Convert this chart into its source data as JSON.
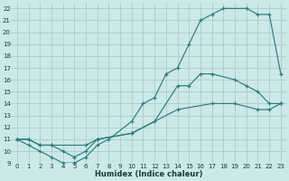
{
  "xlabel": "Humidex (Indice chaleur)",
  "bg_color": "#cce8e8",
  "line_color": "#2d7d7d",
  "grid_color": "#b0d0d0",
  "xlim": [
    -0.5,
    23.5
  ],
  "ylim": [
    9,
    22.5
  ],
  "xticks": [
    0,
    1,
    2,
    3,
    4,
    5,
    6,
    7,
    8,
    9,
    10,
    11,
    12,
    13,
    14,
    15,
    16,
    17,
    18,
    19,
    20,
    21,
    22,
    23
  ],
  "yticks": [
    9,
    10,
    11,
    12,
    13,
    14,
    15,
    16,
    17,
    18,
    19,
    20,
    21,
    22
  ],
  "lines": [
    {
      "x": [
        0,
        1,
        2,
        3,
        4,
        5,
        6,
        7,
        8,
        10,
        11,
        12,
        13,
        14,
        15,
        16,
        17,
        18,
        20,
        21,
        22,
        23
      ],
      "y": [
        11,
        10.5,
        10,
        9.5,
        9,
        9,
        9.5,
        10.5,
        11,
        12.5,
        14,
        14.5,
        16.5,
        17,
        19,
        21,
        21.5,
        22,
        22,
        21.5,
        21.5,
        16.5
      ]
    },
    {
      "x": [
        0,
        1,
        2,
        3,
        4,
        5,
        6,
        7,
        10,
        12,
        14,
        15,
        16,
        17,
        19,
        20,
        21,
        22,
        23
      ],
      "y": [
        11,
        11,
        10.5,
        10.5,
        10,
        9.5,
        10,
        11,
        11.5,
        12.5,
        15.5,
        15.5,
        16.5,
        16.5,
        16,
        15.5,
        15,
        14,
        14
      ]
    },
    {
      "x": [
        0,
        1,
        2,
        3,
        6,
        7,
        10,
        14,
        17,
        19,
        21,
        22,
        23
      ],
      "y": [
        11,
        11,
        10.5,
        10.5,
        10.5,
        11,
        11.5,
        13.5,
        14,
        14,
        13.5,
        13.5,
        14
      ]
    }
  ]
}
